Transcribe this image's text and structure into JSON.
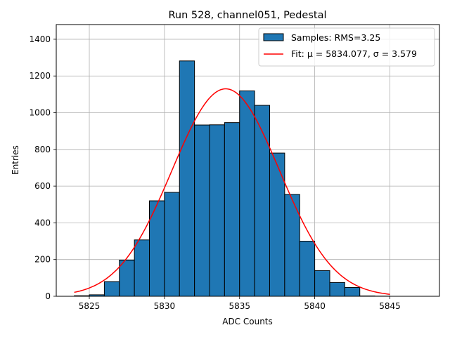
{
  "chart_data": {
    "type": "bar",
    "title": "Run 528, channel051, Pedestal",
    "xlabel": "ADC Counts",
    "ylabel": "Entries",
    "xlim": [
      5822.8,
      5848.3
    ],
    "ylim": [
      0,
      1480
    ],
    "x_ticks": [
      5825,
      5830,
      5835,
      5840,
      5845
    ],
    "y_ticks": [
      0,
      200,
      400,
      600,
      800,
      1000,
      1200,
      1400
    ],
    "grid": true,
    "legend_position": "top-right",
    "histogram": {
      "name": "Samples: RMS=3.25",
      "color": "#1f77b4",
      "edge_color": "#000000",
      "bin_edges": [
        5824,
        5825,
        5826,
        5827,
        5828,
        5829,
        5830,
        5831,
        5832,
        5833,
        5834,
        5835,
        5836,
        5837,
        5838,
        5839,
        5840,
        5841,
        5842,
        5843,
        5844,
        5845,
        5846,
        5847
      ],
      "counts": [
        3,
        8,
        80,
        197,
        307,
        520,
        566,
        1282,
        933,
        934,
        946,
        1119,
        1040,
        780,
        555,
        300,
        140,
        75,
        48,
        2,
        1,
        0,
        0
      ]
    },
    "fit": {
      "name": "Fit: μ = 5834.077, σ = 3.579",
      "color": "#ff0000",
      "mu": 5834.077,
      "sigma": 3.579,
      "amplitude": 1130,
      "x_range": [
        5824,
        5845
      ]
    }
  }
}
